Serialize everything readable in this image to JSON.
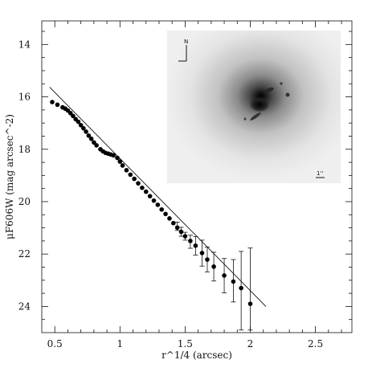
{
  "chart_data": {
    "type": "scatter",
    "xlabel": "r^1/4 (arcsec)",
    "ylabel": "μF606W (mag arcsec^-2)",
    "xlim": [
      0.4,
      2.78
    ],
    "ylim": [
      25.0,
      13.1
    ],
    "y_inverted": true,
    "x_ticks": [
      "0.5",
      "1",
      "1.5",
      "2",
      "2.5"
    ],
    "x_tick_values": [
      0.5,
      1.0,
      1.5,
      2.0,
      2.5
    ],
    "y_ticks": [
      "14",
      "16",
      "18",
      "20",
      "22",
      "24"
    ],
    "y_tick_values": [
      14,
      16,
      18,
      20,
      22,
      24
    ],
    "grid": false,
    "series": [
      {
        "kind": "points",
        "x": [
          0.48,
          0.52,
          0.56,
          0.58,
          0.6,
          0.62,
          0.64,
          0.66,
          0.68,
          0.7,
          0.72,
          0.74,
          0.76,
          0.78,
          0.8,
          0.82,
          0.85,
          0.87,
          0.89,
          0.91,
          0.93,
          0.95,
          0.98,
          1.0,
          1.02,
          1.05,
          1.08,
          1.11,
          1.14,
          1.17,
          1.2,
          1.23,
          1.26,
          1.29,
          1.32,
          1.35,
          1.38,
          1.41,
          1.44,
          1.47,
          1.5,
          1.54,
          1.58,
          1.63,
          1.67,
          1.72,
          1.8,
          1.87,
          1.93,
          2.0
        ],
        "y": [
          16.2,
          16.3,
          16.4,
          16.45,
          16.52,
          16.62,
          16.73,
          16.85,
          16.95,
          17.08,
          17.2,
          17.33,
          17.48,
          17.6,
          17.74,
          17.85,
          18.0,
          18.08,
          18.14,
          18.17,
          18.2,
          18.23,
          18.33,
          18.47,
          18.62,
          18.8,
          18.97,
          19.13,
          19.3,
          19.47,
          19.62,
          19.79,
          19.96,
          20.12,
          20.3,
          20.47,
          20.64,
          20.82,
          20.99,
          21.15,
          21.32,
          21.5,
          21.68,
          21.96,
          22.21,
          22.48,
          22.82,
          23.05,
          23.3,
          23.9
        ],
        "err_low": [
          null,
          null,
          null,
          null,
          null,
          null,
          null,
          null,
          null,
          null,
          null,
          null,
          null,
          null,
          null,
          null,
          null,
          null,
          null,
          null,
          null,
          null,
          null,
          null,
          null,
          null,
          null,
          null,
          null,
          null,
          null,
          null,
          null,
          null,
          null,
          null,
          null,
          null,
          20.78,
          20.98,
          21.17,
          21.28,
          21.33,
          21.47,
          21.73,
          21.93,
          22.17,
          22.21,
          21.9,
          21.77
        ],
        "err_high": [
          null,
          null,
          null,
          null,
          null,
          null,
          null,
          null,
          null,
          null,
          null,
          null,
          null,
          null,
          null,
          null,
          null,
          null,
          null,
          null,
          null,
          null,
          null,
          null,
          null,
          null,
          null,
          null,
          null,
          null,
          null,
          null,
          null,
          null,
          null,
          null,
          null,
          null,
          21.1,
          21.32,
          21.47,
          21.78,
          22.04,
          22.46,
          22.68,
          23.03,
          23.48,
          23.83,
          24.9,
          24.9
        ]
      },
      {
        "kind": "fit-line",
        "x": [
          0.46,
          2.12
        ],
        "y": [
          15.63,
          24.0
        ]
      }
    ],
    "inset": {
      "type": "galaxy-image",
      "north_label": "N",
      "scale_label": "1''"
    }
  }
}
